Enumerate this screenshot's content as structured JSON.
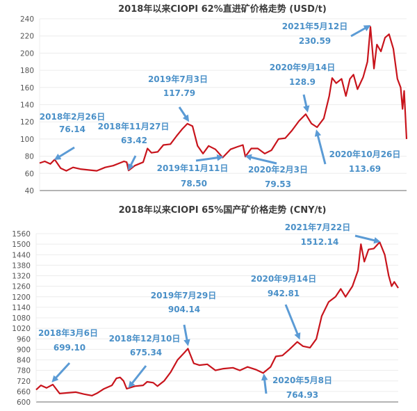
{
  "chart_data": [
    {
      "type": "line",
      "title": "2018年以来CIOPI 62%直进矿价格走势 (USD/t)",
      "ylim": [
        40,
        240
      ],
      "yticks": [
        40,
        60,
        80,
        100,
        120,
        140,
        160,
        180,
        200,
        220,
        240
      ],
      "xlim": [
        "2018-01-01",
        "2021-09-23"
      ],
      "grid": true,
      "line_color": "#c8141c",
      "annotation_color": "#4a90c8",
      "series": [
        {
          "points": [
            [
              "2018-01-01",
              72
            ],
            [
              "2018-01-20",
              74
            ],
            [
              "2018-02-10",
              71
            ],
            [
              "2018-02-26",
              76.14
            ],
            [
              "2018-03-20",
              66
            ],
            [
              "2018-04-10",
              63
            ],
            [
              "2018-05-05",
              67
            ],
            [
              "2018-06-01",
              65
            ],
            [
              "2018-07-01",
              64
            ],
            [
              "2018-08-01",
              63
            ],
            [
              "2018-09-01",
              67
            ],
            [
              "2018-10-01",
              69
            ],
            [
              "2018-10-25",
              72
            ],
            [
              "2018-11-10",
              74
            ],
            [
              "2018-11-20",
              73
            ],
            [
              "2018-11-27",
              63.42
            ],
            [
              "2018-12-20",
              69
            ],
            [
              "2019-01-20",
              73
            ],
            [
              "2019-02-05",
              89
            ],
            [
              "2019-02-20",
              84
            ],
            [
              "2019-03-15",
              85
            ],
            [
              "2019-04-05",
              93
            ],
            [
              "2019-05-01",
              94
            ],
            [
              "2019-05-25",
              104
            ],
            [
              "2019-06-15",
              112
            ],
            [
              "2019-07-03",
              117.79
            ],
            [
              "2019-07-22",
              115
            ],
            [
              "2019-08-10",
              92
            ],
            [
              "2019-08-30",
              83
            ],
            [
              "2019-09-20",
              92
            ],
            [
              "2019-10-15",
              88
            ],
            [
              "2019-11-11",
              78.5
            ],
            [
              "2019-12-10",
              88
            ],
            [
              "2020-01-05",
              91
            ],
            [
              "2020-01-25",
              93
            ],
            [
              "2020-02-03",
              79.53
            ],
            [
              "2020-02-25",
              89
            ],
            [
              "2020-03-20",
              89
            ],
            [
              "2020-04-15",
              83
            ],
            [
              "2020-05-10",
              87
            ],
            [
              "2020-06-05",
              100
            ],
            [
              "2020-06-30",
              101
            ],
            [
              "2020-07-25",
              110
            ],
            [
              "2020-08-20",
              121
            ],
            [
              "2020-09-14",
              128.9
            ],
            [
              "2020-10-05",
              118
            ],
            [
              "2020-10-26",
              113.69
            ],
            [
              "2020-11-20",
              124
            ],
            [
              "2020-12-10",
              150
            ],
            [
              "2020-12-21",
              171
            ],
            [
              "2021-01-05",
              165
            ],
            [
              "2021-01-25",
              170
            ],
            [
              "2021-02-10",
              150
            ],
            [
              "2021-02-25",
              170
            ],
            [
              "2021-03-10",
              175
            ],
            [
              "2021-03-25",
              158
            ],
            [
              "2021-04-15",
              172
            ],
            [
              "2021-05-01",
              190
            ],
            [
              "2021-05-12",
              230.59
            ],
            [
              "2021-05-25",
              182
            ],
            [
              "2021-06-05",
              210
            ],
            [
              "2021-06-20",
              202
            ],
            [
              "2021-07-05",
              218
            ],
            [
              "2021-07-20",
              222
            ],
            [
              "2021-08-05",
              205
            ],
            [
              "2021-08-20",
              170
            ],
            [
              "2021-09-01",
              160
            ],
            [
              "2021-09-08",
              135
            ],
            [
              "2021-09-14",
              156
            ],
            [
              "2021-09-23",
              100
            ]
          ]
        }
      ],
      "annotations": [
        {
          "label": "2018年2月26日",
          "value": "76.14",
          "date": "2018-02-26"
        },
        {
          "label": "2018年11月27日",
          "value": "63.42",
          "date": "2018-11-27"
        },
        {
          "label": "2019年7月3日",
          "value": "117.79",
          "date": "2019-07-03"
        },
        {
          "label": "2019年11月11日",
          "value": "78.50",
          "date": "2019-11-11"
        },
        {
          "label": "2020年2月3日",
          "value": "79.53",
          "date": "2020-02-03"
        },
        {
          "label": "2020年9月14日",
          "value": "128.9",
          "date": "2020-09-14"
        },
        {
          "label": "2020年10月26日",
          "value": "113.69",
          "date": "2020-10-26"
        },
        {
          "label": "2021年5月12日",
          "value": "230.59",
          "date": "2021-05-12"
        }
      ]
    },
    {
      "type": "line",
      "title": "2018年以来CIOPI 65%国产矿价格走势 (CNY/t)",
      "ylim": [
        600,
        1560
      ],
      "yticks": [
        600,
        660,
        720,
        780,
        840,
        900,
        960,
        1020,
        1080,
        1140,
        1200,
        1260,
        1320,
        1380,
        1440,
        1500,
        1560
      ],
      "xlim": [
        "2018-01-02",
        "2021-09-30"
      ],
      "grid": true,
      "line_color": "#c8141c",
      "annotation_color": "#4a90c8",
      "series": [
        {
          "points": [
            [
              "2018-01-02",
              670
            ],
            [
              "2018-01-20",
              695
            ],
            [
              "2018-02-10",
              680
            ],
            [
              "2018-03-06",
              699.1
            ],
            [
              "2018-04-01",
              648
            ],
            [
              "2018-05-01",
              652
            ],
            [
              "2018-06-01",
              656
            ],
            [
              "2018-07-01",
              645
            ],
            [
              "2018-08-01",
              636
            ],
            [
              "2018-08-20",
              650
            ],
            [
              "2018-09-15",
              675
            ],
            [
              "2018-10-15",
              695
            ],
            [
              "2018-11-01",
              735
            ],
            [
              "2018-11-15",
              740
            ],
            [
              "2018-11-28",
              720
            ],
            [
              "2018-12-10",
              675.34
            ],
            [
              "2019-01-10",
              690
            ],
            [
              "2019-02-10",
              695
            ],
            [
              "2019-02-25",
              715
            ],
            [
              "2019-03-20",
              710
            ],
            [
              "2019-04-05",
              690
            ],
            [
              "2019-04-30",
              720
            ],
            [
              "2019-05-25",
              770
            ],
            [
              "2019-06-20",
              840
            ],
            [
              "2019-07-15",
              880
            ],
            [
              "2019-07-29",
              904.14
            ],
            [
              "2019-08-20",
              820
            ],
            [
              "2019-09-10",
              810
            ],
            [
              "2019-10-10",
              815
            ],
            [
              "2019-11-10",
              780
            ],
            [
              "2019-12-10",
              790
            ],
            [
              "2020-01-15",
              795
            ],
            [
              "2020-02-10",
              780
            ],
            [
              "2020-03-10",
              800
            ],
            [
              "2020-04-10",
              785
            ],
            [
              "2020-05-08",
              764.93
            ],
            [
              "2020-06-05",
              800
            ],
            [
              "2020-06-25",
              860
            ],
            [
              "2020-07-20",
              865
            ],
            [
              "2020-08-15",
              900
            ],
            [
              "2020-09-14",
              942.81
            ],
            [
              "2020-10-05",
              918
            ],
            [
              "2020-11-01",
              910
            ],
            [
              "2020-11-25",
              960
            ],
            [
              "2020-12-15",
              1090
            ],
            [
              "2021-01-10",
              1170
            ],
            [
              "2021-02-05",
              1200
            ],
            [
              "2021-02-25",
              1245
            ],
            [
              "2021-03-15",
              1200
            ],
            [
              "2021-04-10",
              1260
            ],
            [
              "2021-05-01",
              1350
            ],
            [
              "2021-05-12",
              1500
            ],
            [
              "2021-05-25",
              1400
            ],
            [
              "2021-06-10",
              1470
            ],
            [
              "2021-06-30",
              1475
            ],
            [
              "2021-07-22",
              1512.14
            ],
            [
              "2021-08-10",
              1440
            ],
            [
              "2021-08-25",
              1320
            ],
            [
              "2021-09-05",
              1260
            ],
            [
              "2021-09-15",
              1285
            ],
            [
              "2021-09-30",
              1250
            ]
          ]
        }
      ],
      "annotations": [
        {
          "label": "2018年3月6日",
          "value": "699.10",
          "date": "2018-03-06"
        },
        {
          "label": "2018年12月10日",
          "value": "675.34",
          "date": "2018-12-10"
        },
        {
          "label": "2019年7月29日",
          "value": "904.14",
          "date": "2019-07-29"
        },
        {
          "label": "2020年9月14日",
          "value": "942.81",
          "date": "2020-09-14"
        },
        {
          "label": "2020年5月8日",
          "value": "764.93",
          "date": "2020-05-08"
        },
        {
          "label": "2021年7月22日",
          "value": "1512.14",
          "date": "2021-07-22"
        }
      ]
    }
  ]
}
